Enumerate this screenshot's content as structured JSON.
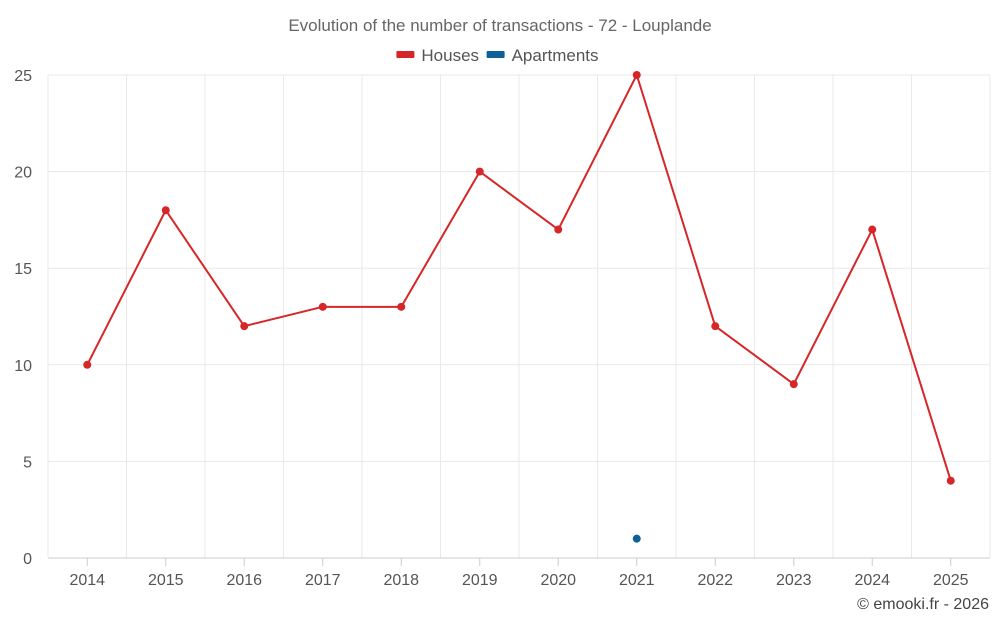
{
  "chart_data": {
    "type": "line",
    "title": "Evolution of the number of transactions - 72 - Louplande",
    "categories": [
      "2014",
      "2015",
      "2016",
      "2017",
      "2018",
      "2019",
      "2020",
      "2021",
      "2022",
      "2023",
      "2024",
      "2025"
    ],
    "series": [
      {
        "name": "Houses",
        "color": "#d62728",
        "values": [
          10,
          18,
          12,
          13,
          13,
          20,
          17,
          25,
          12,
          9,
          17,
          4
        ]
      },
      {
        "name": "Apartments",
        "color": "#0c6197",
        "values": [
          null,
          null,
          null,
          null,
          null,
          null,
          null,
          1,
          null,
          null,
          null,
          null
        ]
      }
    ],
    "y_ticks": [
      "0",
      "5",
      "10",
      "15",
      "20",
      "25"
    ],
    "ylim": [
      0,
      25
    ],
    "xlabel": "",
    "ylabel": "",
    "grid": true,
    "legend_position": "top-center"
  },
  "credit": "© emooki.fr - 2026"
}
